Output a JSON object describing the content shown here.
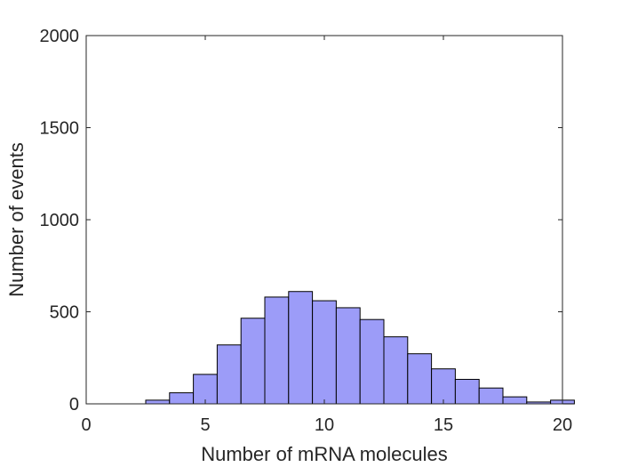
{
  "chart_data": {
    "type": "bar",
    "subtype": "histogram",
    "xlabel": "Number of mRNA molecules",
    "ylabel": "Number of events",
    "xlim": [
      0,
      20
    ],
    "ylim": [
      0,
      2000
    ],
    "xticks": [
      0,
      5,
      10,
      15,
      20
    ],
    "yticks": [
      0,
      500,
      1000,
      1500,
      2000
    ],
    "bin_width": 1,
    "bin_starts": [
      0.5,
      1.5,
      2.5,
      3.5,
      4.5,
      5.5,
      6.5,
      7.5,
      8.5,
      9.5,
      10.5,
      11.5,
      12.5,
      13.5,
      14.5,
      15.5,
      16.5,
      17.5,
      18.5,
      19.5
    ],
    "values": [
      0,
      0,
      20,
      60,
      160,
      320,
      465,
      580,
      610,
      560,
      522,
      458,
      364,
      272,
      190,
      133,
      86,
      38,
      10,
      20
    ],
    "grid": false,
    "bar_color": "#9c9cf8",
    "edge_color": "#000000"
  }
}
